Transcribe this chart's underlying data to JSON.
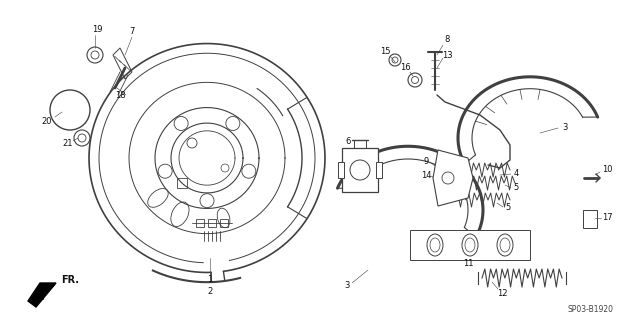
{
  "bg_color": "#ffffff",
  "line_color": "#404040",
  "text_color": "#111111",
  "fig_width": 6.4,
  "fig_height": 3.19,
  "dpi": 100,
  "diagram_label": "SP03-B1920"
}
